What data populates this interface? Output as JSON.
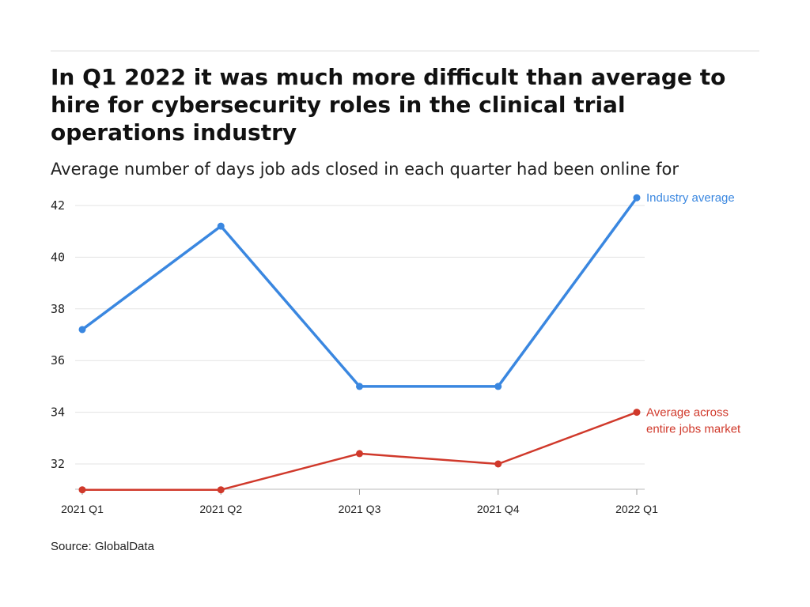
{
  "title": "In Q1 2022 it was much more difficult than average to hire for cybersecurity roles in the clinical trial operations industry",
  "subtitle": "Average number of days job ads closed in each quarter had been online for",
  "source": "Source: GlobalData",
  "chart_data": {
    "type": "line",
    "title": "In Q1 2022 it was much more difficult than average to hire for cybersecurity roles in the clinical trial operations industry",
    "subtitle": "Average number of days job ads closed in each quarter had been online for",
    "categories": [
      "2021 Q1",
      "2021 Q2",
      "2021 Q3",
      "2021 Q4",
      "2022 Q1"
    ],
    "series": [
      {
        "name": "Industry average",
        "values": [
          37.2,
          41.2,
          35.0,
          35.0,
          42.3
        ],
        "color": "#3a87e0"
      },
      {
        "name": "Average across entire jobs market",
        "label_lines": [
          "Average across",
          "entire jobs market"
        ],
        "values": [
          31.0,
          31.0,
          32.4,
          32.0,
          34.0
        ],
        "color": "#d0392b"
      }
    ],
    "yticks": [
      32,
      34,
      36,
      38,
      40,
      42
    ],
    "ylim": [
      31,
      42.3
    ],
    "grid": true,
    "legend": "inline-right"
  }
}
